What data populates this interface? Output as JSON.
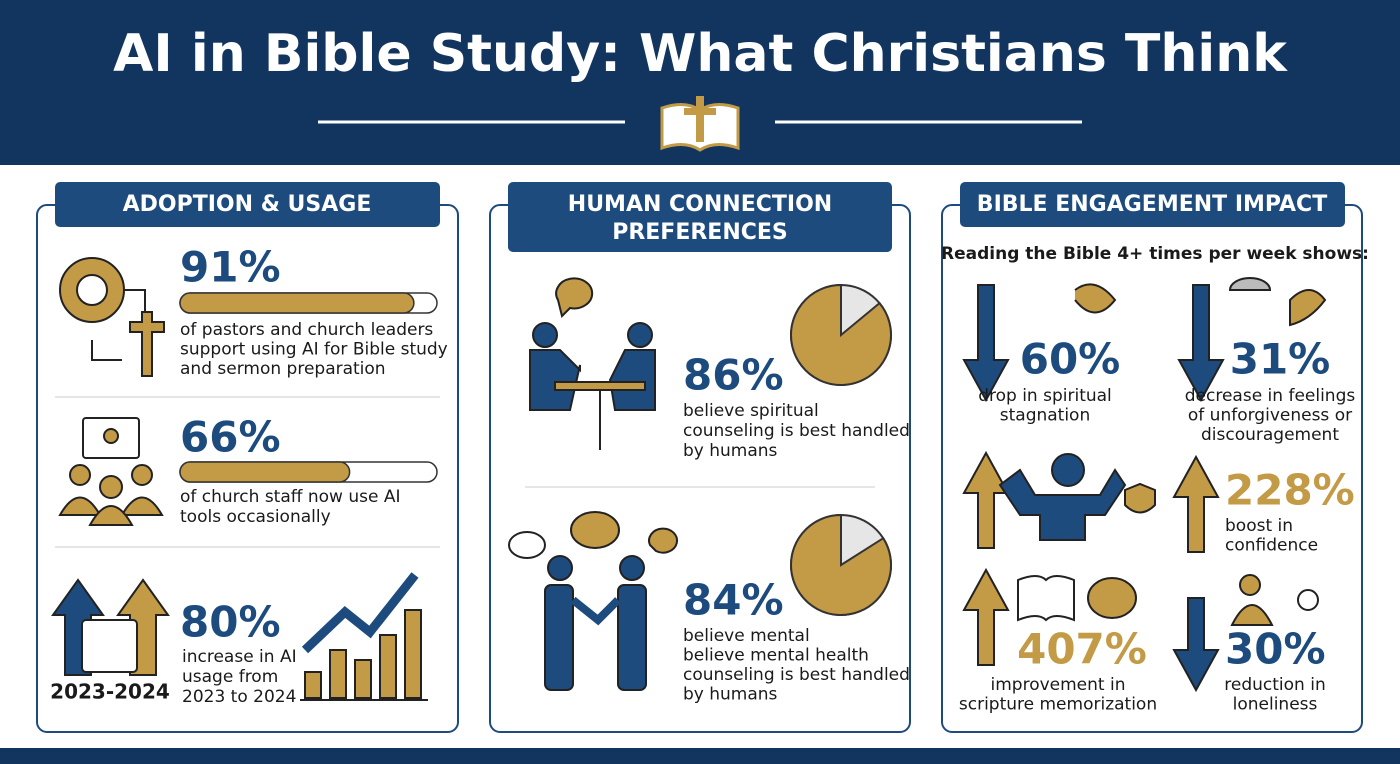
{
  "header": {
    "title": "AI in Bible Study: What Christians Think"
  },
  "panels": [
    {
      "heading": [
        "ADOPTION & USAGE"
      ],
      "items": [
        {
          "stat": {
            "value": 91,
            "label": "91%"
          },
          "lines": [
            "of pastors and church leaders",
            "support using AI for Bible study",
            "and sermon preparation"
          ]
        },
        {
          "stat": {
            "value": 66,
            "label": "66%"
          },
          "lines": [
            "of church staff now use AI",
            "tools occasionally"
          ]
        },
        {
          "stat": "80%",
          "lines": [
            "increase in AI",
            "usage from",
            "2023 to 2024"
          ],
          "period": "2023-2024"
        }
      ]
    },
    {
      "heading": [
        "HUMAN CONNECTION",
        "PREFERENCES"
      ],
      "items": [
        {
          "stat": {
            "value": 86,
            "label": "86%"
          },
          "lines": [
            "believe spiritual",
            "counseling is best handled",
            "by humans"
          ]
        },
        {
          "stat": {
            "value": 84,
            "label": "84%"
          },
          "lines": [
            "believe mental",
            "believe mental health",
            "counseling is best handled",
            "by humans"
          ]
        }
      ]
    },
    {
      "heading": [
        "BIBLE ENGAGEMENT IMPACT"
      ],
      "subtitle": "Reading the Bible 4+ times per week shows:",
      "items": [
        {
          "stat": "60%",
          "lines": [
            "drop in spiritual",
            "stagnation"
          ]
        },
        {
          "stat": "31%",
          "lines": [
            "decrease in feelings",
            "of unforgiveness or",
            "discouragement"
          ]
        },
        {
          "stat": "228%",
          "lines": [
            "boost in",
            "confidence"
          ]
        },
        {
          "stat": "407%",
          "lines": [
            "improvement in",
            "scripture memorization"
          ]
        },
        {
          "stat": "30%",
          "lines": [
            "reduction in",
            "loneliness"
          ]
        }
      ]
    }
  ]
}
